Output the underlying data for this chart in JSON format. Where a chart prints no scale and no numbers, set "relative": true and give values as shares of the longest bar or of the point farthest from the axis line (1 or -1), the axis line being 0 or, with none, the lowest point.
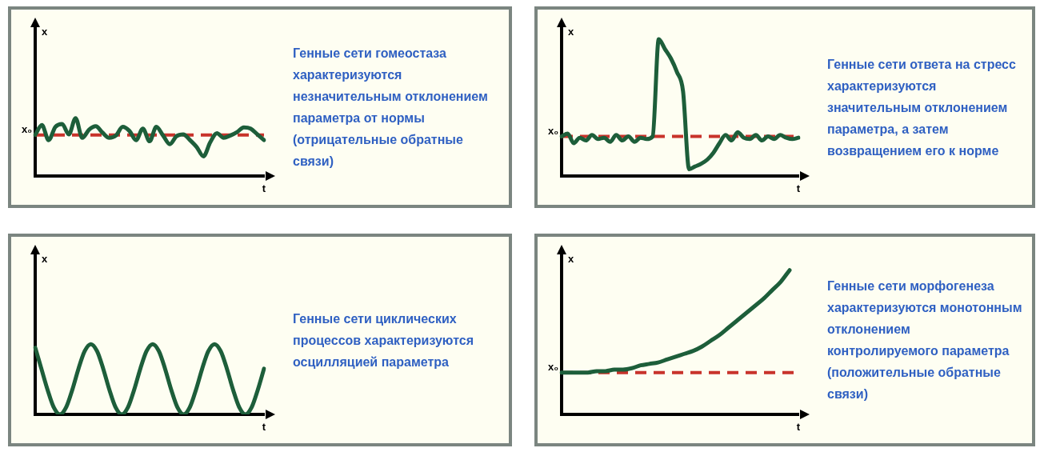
{
  "chart_data": [
    {
      "type": "line",
      "relative": true,
      "grid": false,
      "legend": false,
      "marker": "none",
      "xlabel": "t",
      "ylabel": "x",
      "color": "#1d5e3a",
      "categories": [
        null,
        null,
        null,
        null,
        null,
        null,
        null,
        null,
        null,
        null,
        null,
        null,
        null,
        null,
        null,
        null,
        null,
        null,
        null,
        null,
        null,
        null,
        null,
        null,
        null,
        null,
        null,
        null,
        null,
        null,
        null,
        null,
        null,
        null,
        null
      ],
      "values": [
        0.71,
        0.88,
        0.62,
        0.85,
        0.9,
        0.72,
        1.0,
        0.66,
        0.8,
        0.86,
        0.75,
        0.66,
        0.7,
        0.85,
        0.78,
        0.62,
        0.82,
        0.6,
        0.85,
        0.7,
        0.55,
        0.69,
        0.72,
        0.62,
        0.5,
        0.34,
        0.58,
        0.74,
        0.66,
        0.7,
        0.76,
        0.84,
        0.82,
        0.72,
        0.62
      ],
      "ref_lines": [
        {
          "axis": "y",
          "value": 0.71,
          "label": "x₀",
          "color": "#c8332b",
          "line_style": "dashed"
        }
      ],
      "annotations": [
        "Генные сети гомеостаза характеризуются незначительным отклонением параметра от нормы (отрицательные обратные связи)"
      ]
    },
    {
      "type": "line",
      "relative": true,
      "grid": false,
      "legend": false,
      "marker": "none",
      "xlabel": "t",
      "ylabel": "x",
      "color": "#1d5e3a",
      "categories": [
        null,
        null,
        null,
        null,
        null,
        null,
        null,
        null,
        null,
        null,
        null,
        null,
        null,
        null,
        null,
        null,
        null,
        null,
        null,
        null,
        null,
        null,
        null,
        null,
        null,
        null,
        null,
        null,
        null,
        null,
        null,
        null,
        null,
        null,
        null,
        null,
        null,
        null,
        null,
        null
      ],
      "values": [
        0.29,
        0.31,
        0.24,
        0.28,
        0.26,
        0.3,
        0.27,
        0.28,
        0.25,
        0.3,
        0.26,
        0.29,
        0.25,
        0.28,
        0.27,
        0.29,
        1.0,
        0.93,
        0.86,
        0.76,
        0.62,
        0.05,
        0.07,
        0.09,
        0.12,
        0.17,
        0.24,
        0.3,
        0.26,
        0.32,
        0.28,
        0.27,
        0.3,
        0.26,
        0.29,
        0.27,
        0.3,
        0.28,
        0.27,
        0.28
      ],
      "ref_lines": [
        {
          "axis": "y",
          "value": 0.29,
          "label": "x₀",
          "color": "#c8332b",
          "line_style": "dashed"
        }
      ],
      "annotations": [
        "Генные сети ответа на стресс характеризуются значительным отклонением параметра, а затем возвращением его к норме"
      ]
    },
    {
      "type": "line",
      "relative": true,
      "grid": false,
      "legend": false,
      "marker": "none",
      "xlabel": "t",
      "ylabel": "x",
      "color": "#1d5e3a",
      "categories": [
        null,
        null,
        null,
        null,
        null,
        null,
        null,
        null,
        null,
        null,
        null,
        null,
        null,
        null,
        null,
        null,
        null,
        null,
        null,
        null,
        null,
        null,
        null,
        null,
        null,
        null,
        null,
        null,
        null,
        null,
        null,
        null,
        null,
        null,
        null,
        null,
        null,
        null
      ],
      "values": [
        0.95,
        0.65,
        0.35,
        0.1,
        0,
        0.1,
        0.35,
        0.65,
        0.9,
        1,
        0.9,
        0.65,
        0.35,
        0.1,
        0,
        0.1,
        0.35,
        0.65,
        0.9,
        1,
        0.9,
        0.65,
        0.35,
        0.1,
        0,
        0.1,
        0.35,
        0.65,
        0.9,
        1,
        0.9,
        0.65,
        0.35,
        0.1,
        0,
        0.1,
        0.35,
        0.65
      ],
      "annotations": [
        "Генные сети циклических процессов характеризуются осцилляцией параметра"
      ]
    },
    {
      "type": "line",
      "relative": true,
      "grid": false,
      "legend": false,
      "marker": "none",
      "xlabel": "t",
      "ylabel": "x",
      "color": "#1d5e3a",
      "categories": [
        null,
        null,
        null,
        null,
        null,
        null,
        null,
        null,
        null,
        null,
        null,
        null,
        null,
        null,
        null,
        null,
        null,
        null,
        null,
        null,
        null,
        null,
        null,
        null,
        null,
        null,
        null,
        null
      ],
      "values": [
        0.29,
        0.29,
        0.29,
        0.29,
        0.3,
        0.3,
        0.31,
        0.31,
        0.32,
        0.34,
        0.35,
        0.36,
        0.38,
        0.4,
        0.42,
        0.44,
        0.47,
        0.51,
        0.55,
        0.6,
        0.65,
        0.7,
        0.75,
        0.8,
        0.86,
        0.92,
        1.0,
        null
      ],
      "ref_lines": [
        {
          "axis": "y",
          "value": 0.29,
          "label": "x₀",
          "color": "#c8332b",
          "line_style": "dashed"
        }
      ],
      "annotations": [
        "Генные сети морфогенеза характеризуются монотонным отклонением контролируемого параметра (положительные обратные связи)"
      ]
    }
  ]
}
